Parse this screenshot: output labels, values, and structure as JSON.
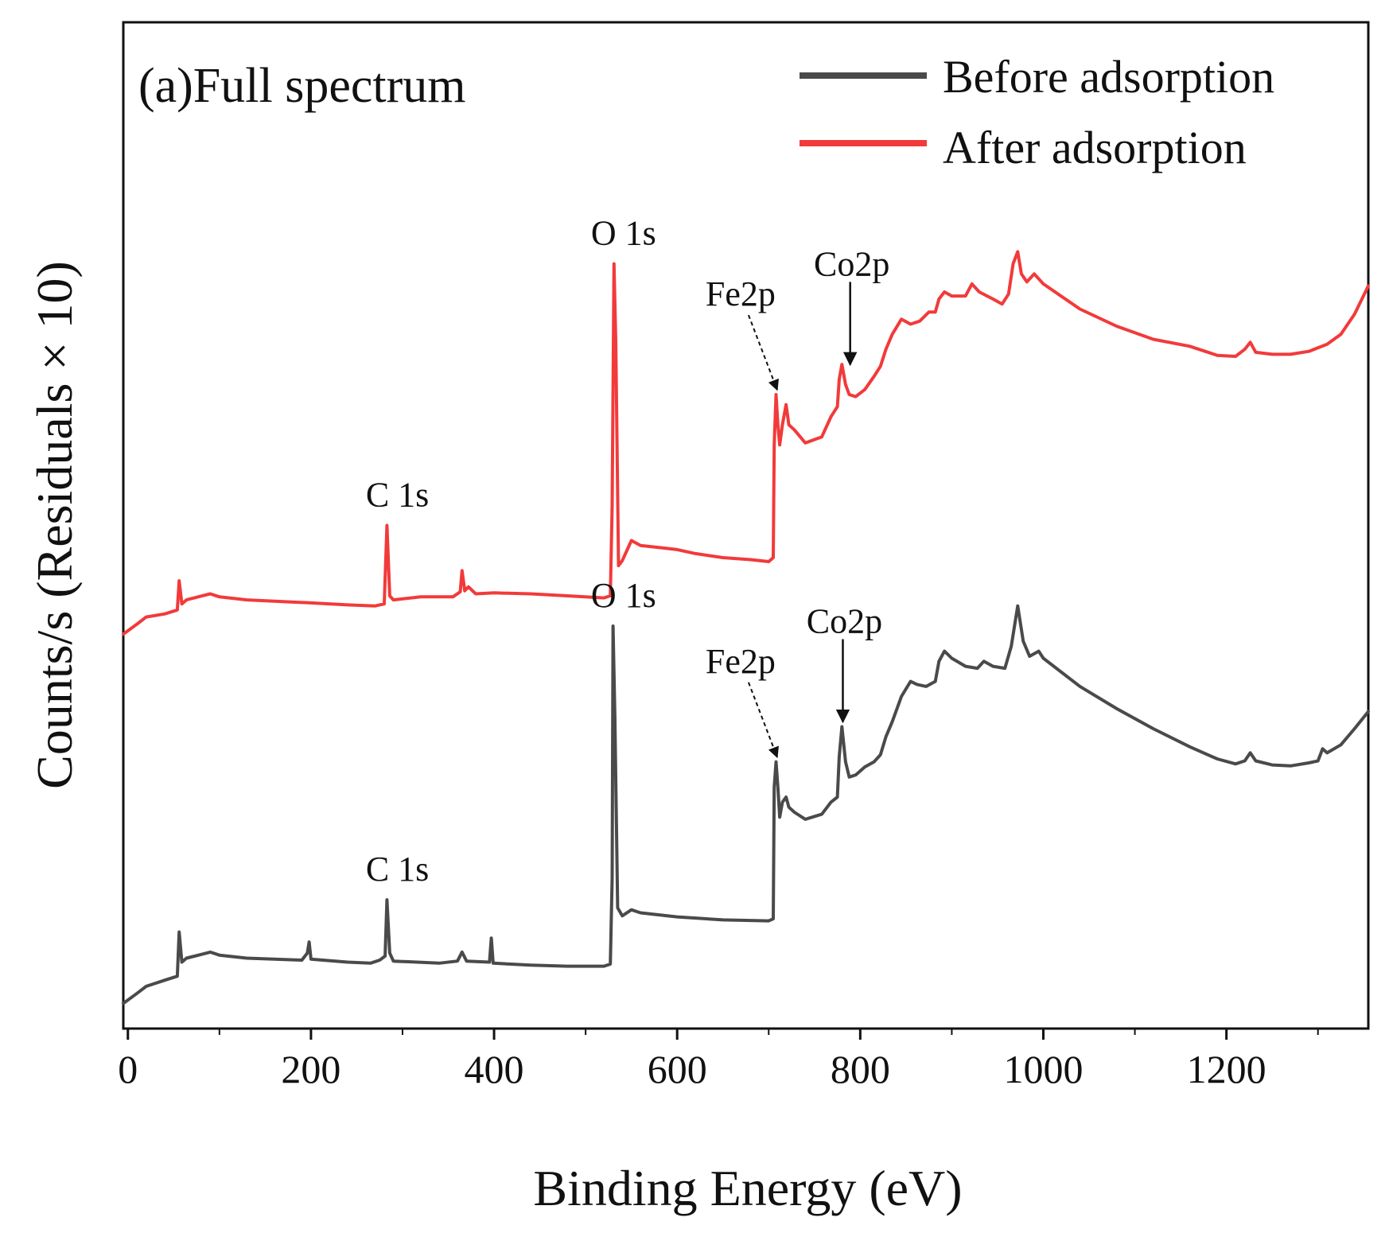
{
  "chart_data": {
    "type": "line",
    "panel_title": "(a)Full spectrum",
    "xlabel": "Binding Energy (eV)",
    "ylabel": "Counts/s (Residuals × 10)",
    "xlim": [
      -5,
      1355
    ],
    "ylim": [
      0,
      100
    ],
    "x_ticks": [
      0,
      200,
      400,
      600,
      800,
      1000,
      1200
    ],
    "x_tick_labels": [
      "0",
      "200",
      "400",
      "600",
      "800",
      "1000",
      "1200"
    ],
    "y_ticks_shown": false,
    "legend": {
      "position": "top-right",
      "entries": [
        {
          "label": "Before adsorption",
          "color": "#4a4a4a"
        },
        {
          "label": "After adsorption",
          "color": "#f23a3a"
        }
      ]
    },
    "series": [
      {
        "name": "Before adsorption",
        "color": "#4a4a4a",
        "points": [
          [
            -5,
            2.5
          ],
          [
            10,
            3.5
          ],
          [
            20,
            4.2
          ],
          [
            40,
            4.8
          ],
          [
            54,
            5.2
          ],
          [
            56,
            9.6
          ],
          [
            59,
            6.6
          ],
          [
            64,
            7.0
          ],
          [
            90,
            7.6
          ],
          [
            100,
            7.3
          ],
          [
            130,
            7.0
          ],
          [
            190,
            6.8
          ],
          [
            196,
            7.5
          ],
          [
            198,
            8.6
          ],
          [
            200,
            6.9
          ],
          [
            240,
            6.6
          ],
          [
            265,
            6.5
          ],
          [
            275,
            6.8
          ],
          [
            281,
            7.2
          ],
          [
            283,
            12.8
          ],
          [
            286,
            7.5
          ],
          [
            290,
            6.7
          ],
          [
            340,
            6.5
          ],
          [
            360,
            6.7
          ],
          [
            365,
            7.6
          ],
          [
            370,
            6.7
          ],
          [
            395,
            6.6
          ],
          [
            397,
            9.0
          ],
          [
            399,
            6.5
          ],
          [
            440,
            6.3
          ],
          [
            480,
            6.2
          ],
          [
            520,
            6.2
          ],
          [
            527,
            6.4
          ],
          [
            529,
            15.0
          ],
          [
            530,
            40.0
          ],
          [
            532,
            31.0
          ],
          [
            535,
            12.0
          ],
          [
            540,
            11.2
          ],
          [
            550,
            11.8
          ],
          [
            560,
            11.5
          ],
          [
            600,
            11.1
          ],
          [
            650,
            10.8
          ],
          [
            700,
            10.7
          ],
          [
            705,
            10.9
          ],
          [
            706,
            24.0
          ],
          [
            708,
            26.5
          ],
          [
            710,
            24.0
          ],
          [
            712,
            21.0
          ],
          [
            715,
            22.5
          ],
          [
            719,
            23.0
          ],
          [
            722,
            22.0
          ],
          [
            728,
            21.5
          ],
          [
            740,
            20.8
          ],
          [
            758,
            21.3
          ],
          [
            768,
            22.5
          ],
          [
            775,
            23.0
          ],
          [
            777,
            27.0
          ],
          [
            780,
            30.0
          ],
          [
            784,
            26.5
          ],
          [
            788,
            25.0
          ],
          [
            795,
            25.2
          ],
          [
            805,
            26.0
          ],
          [
            815,
            26.5
          ],
          [
            822,
            27.2
          ],
          [
            828,
            29.0
          ],
          [
            835,
            30.5
          ],
          [
            845,
            33.0
          ],
          [
            855,
            34.5
          ],
          [
            862,
            34.2
          ],
          [
            872,
            34.0
          ],
          [
            882,
            34.5
          ],
          [
            886,
            36.5
          ],
          [
            892,
            37.5
          ],
          [
            900,
            36.8
          ],
          [
            915,
            36.0
          ],
          [
            928,
            35.8
          ],
          [
            935,
            36.5
          ],
          [
            945,
            36.0
          ],
          [
            958,
            35.8
          ],
          [
            965,
            38.0
          ],
          [
            972,
            42.0
          ],
          [
            978,
            38.5
          ],
          [
            985,
            37.0
          ],
          [
            995,
            37.5
          ],
          [
            1000,
            36.8
          ],
          [
            1040,
            34.0
          ],
          [
            1080,
            31.8
          ],
          [
            1120,
            29.8
          ],
          [
            1160,
            28.0
          ],
          [
            1190,
            26.8
          ],
          [
            1210,
            26.3
          ],
          [
            1220,
            26.6
          ],
          [
            1226,
            27.4
          ],
          [
            1232,
            26.6
          ],
          [
            1250,
            26.2
          ],
          [
            1270,
            26.1
          ],
          [
            1290,
            26.4
          ],
          [
            1300,
            26.6
          ],
          [
            1305,
            27.8
          ],
          [
            1310,
            27.4
          ],
          [
            1325,
            28.2
          ],
          [
            1340,
            29.8
          ],
          [
            1355,
            31.5
          ]
        ]
      },
      {
        "name": "After adsorption",
        "color": "#f23a3a",
        "points": [
          [
            -5,
            39.2
          ],
          [
            10,
            40.2
          ],
          [
            20,
            40.9
          ],
          [
            40,
            41.2
          ],
          [
            54,
            41.6
          ],
          [
            56,
            44.5
          ],
          [
            59,
            42.2
          ],
          [
            64,
            42.6
          ],
          [
            90,
            43.2
          ],
          [
            100,
            42.9
          ],
          [
            130,
            42.6
          ],
          [
            200,
            42.3
          ],
          [
            240,
            42.1
          ],
          [
            270,
            42.0
          ],
          [
            280,
            42.2
          ],
          [
            283,
            50.0
          ],
          [
            286,
            43.0
          ],
          [
            290,
            42.6
          ],
          [
            320,
            42.9
          ],
          [
            355,
            42.9
          ],
          [
            363,
            43.4
          ],
          [
            365,
            45.5
          ],
          [
            368,
            43.5
          ],
          [
            372,
            43.9
          ],
          [
            380,
            43.2
          ],
          [
            400,
            43.3
          ],
          [
            440,
            43.2
          ],
          [
            480,
            43.0
          ],
          [
            520,
            42.8
          ],
          [
            527,
            43.0
          ],
          [
            529,
            52.0
          ],
          [
            531,
            76.0
          ],
          [
            533,
            68.0
          ],
          [
            536,
            46.0
          ],
          [
            540,
            46.5
          ],
          [
            550,
            48.5
          ],
          [
            560,
            48.0
          ],
          [
            580,
            47.8
          ],
          [
            600,
            47.6
          ],
          [
            620,
            47.2
          ],
          [
            650,
            46.8
          ],
          [
            680,
            46.6
          ],
          [
            700,
            46.4
          ],
          [
            705,
            46.8
          ],
          [
            706,
            58.0
          ],
          [
            708,
            63.0
          ],
          [
            710,
            60.0
          ],
          [
            712,
            58.0
          ],
          [
            715,
            60.0
          ],
          [
            719,
            62.0
          ],
          [
            722,
            60.0
          ],
          [
            728,
            59.5
          ],
          [
            740,
            58.2
          ],
          [
            758,
            58.8
          ],
          [
            768,
            60.8
          ],
          [
            775,
            61.8
          ],
          [
            777,
            64.5
          ],
          [
            780,
            66.0
          ],
          [
            784,
            64.0
          ],
          [
            788,
            63.0
          ],
          [
            795,
            62.8
          ],
          [
            805,
            63.5
          ],
          [
            815,
            64.8
          ],
          [
            822,
            65.8
          ],
          [
            828,
            67.5
          ],
          [
            835,
            69.0
          ],
          [
            845,
            70.5
          ],
          [
            855,
            70.0
          ],
          [
            865,
            70.3
          ],
          [
            875,
            71.2
          ],
          [
            882,
            71.2
          ],
          [
            886,
            72.5
          ],
          [
            892,
            73.2
          ],
          [
            900,
            72.8
          ],
          [
            915,
            72.8
          ],
          [
            922,
            74.0
          ],
          [
            930,
            73.2
          ],
          [
            945,
            72.5
          ],
          [
            955,
            72.0
          ],
          [
            962,
            73.0
          ],
          [
            967,
            76.0
          ],
          [
            972,
            77.2
          ],
          [
            976,
            75.0
          ],
          [
            982,
            74.2
          ],
          [
            990,
            75.0
          ],
          [
            1000,
            74.0
          ],
          [
            1040,
            71.5
          ],
          [
            1080,
            69.8
          ],
          [
            1120,
            68.5
          ],
          [
            1160,
            67.8
          ],
          [
            1190,
            66.9
          ],
          [
            1210,
            66.8
          ],
          [
            1220,
            67.5
          ],
          [
            1226,
            68.2
          ],
          [
            1232,
            67.2
          ],
          [
            1250,
            67.0
          ],
          [
            1270,
            67.0
          ],
          [
            1290,
            67.3
          ],
          [
            1310,
            68.0
          ],
          [
            1325,
            69.0
          ],
          [
            1340,
            71.0
          ],
          [
            1355,
            73.8
          ]
        ]
      }
    ],
    "annotations": [
      {
        "series": "After adsorption",
        "label": "C 1s",
        "x": 284,
        "y": 50.0,
        "style": "label"
      },
      {
        "series": "After adsorption",
        "label": "O 1s",
        "x": 531,
        "y": 76.0,
        "style": "label"
      },
      {
        "series": "After adsorption",
        "label": "Fe2p",
        "x": 711,
        "y": 63.0,
        "style": "dashed-arrow"
      },
      {
        "series": "After adsorption",
        "label": "Co2p",
        "x": 789,
        "y": 65.5,
        "style": "solid-arrow"
      },
      {
        "series": "Before adsorption",
        "label": "C 1s",
        "x": 284,
        "y": 12.8,
        "style": "label"
      },
      {
        "series": "Before adsorption",
        "label": "O 1s",
        "x": 531,
        "y": 40.0,
        "style": "label"
      },
      {
        "series": "Before adsorption",
        "label": "Fe2p",
        "x": 711,
        "y": 26.5,
        "style": "dashed-arrow"
      },
      {
        "series": "Before adsorption",
        "label": "Co2p",
        "x": 781,
        "y": 30.0,
        "style": "solid-arrow"
      }
    ]
  }
}
